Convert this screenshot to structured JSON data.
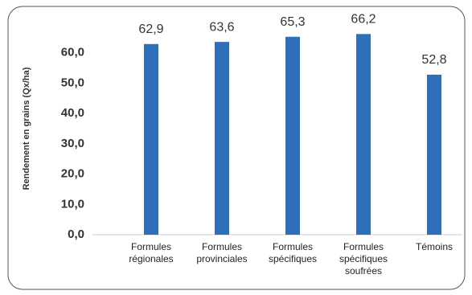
{
  "chart_data": {
    "type": "bar",
    "y_label": "Rendement en grains (Qx/ha)",
    "categories": [
      "Formules\nrégionales",
      "Formules\nprovinciales",
      "Formules\nspécifiques",
      "Formules\nspécifiques\nsoufrées",
      "Témoins"
    ],
    "values": [
      62.9,
      63.6,
      65.3,
      66.2,
      52.8
    ],
    "value_labels": [
      "62,9",
      "63,6",
      "65,3",
      "66,2",
      "52,8"
    ],
    "color": "#2e6fb7",
    "ylim": [
      0,
      70
    ],
    "yticks": [
      {
        "value": 0,
        "label": "0,0"
      },
      {
        "value": 10,
        "label": "10,0"
      },
      {
        "value": 20,
        "label": "20,0"
      },
      {
        "value": 30,
        "label": "30,0"
      },
      {
        "value": 40,
        "label": "40,0"
      },
      {
        "value": 50,
        "label": "50,0"
      },
      {
        "value": 60,
        "label": "60,0"
      }
    ],
    "grid": false
  }
}
